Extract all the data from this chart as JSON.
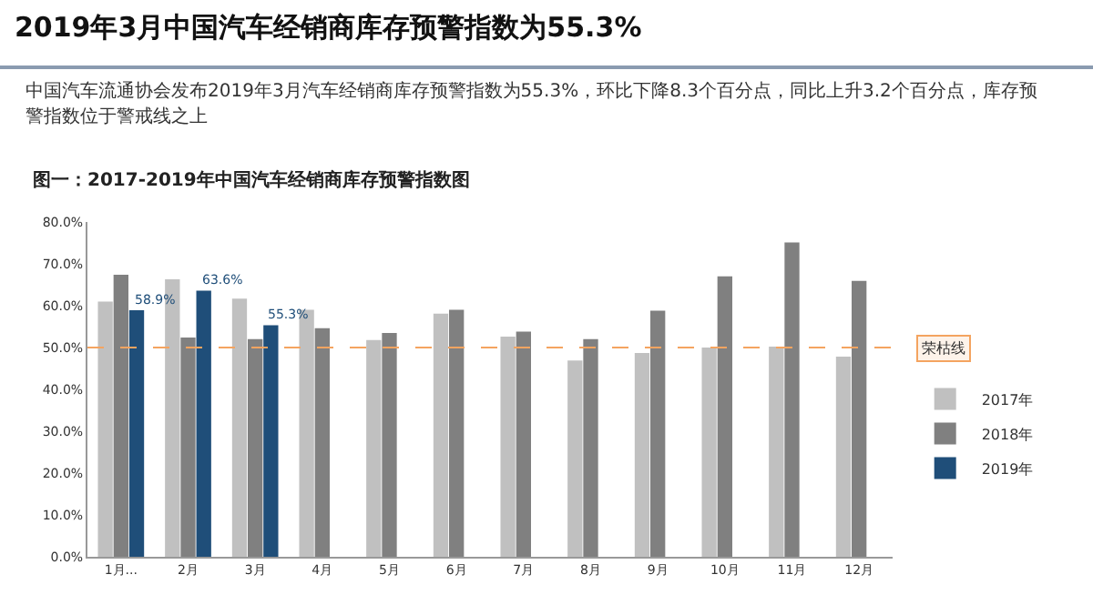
{
  "chart_data": {
    "type": "bar",
    "title": "2019年3月中国汽车经销商库存预警指数为55.3%",
    "subtitle": "中国汽车流通协会发布2019年3月汽车经销商库存预警指数为55.3%，环比下降8.3个百分点，同比上升3.2个百分点，库存预警指数位于警戒线之上",
    "annotations": [
      "图一：2017-2019年中国汽车经销商库存预警指数图"
    ],
    "categories": [
      "1月...",
      "2月",
      "3月",
      "4月",
      "5月",
      "6月",
      "7月",
      "8月",
      "9月",
      "10月",
      "11月",
      "12月"
    ],
    "series": [
      {
        "name": "2017年",
        "color": "#c0c0c0",
        "values": [
          61.0,
          66.3,
          61.7,
          59.0,
          51.8,
          58.1,
          52.6,
          46.9,
          48.7,
          50.0,
          50.2,
          47.8
        ]
      },
      {
        "name": "2018年",
        "color": "#808080",
        "values": [
          67.4,
          52.4,
          52.0,
          54.6,
          53.5,
          59.0,
          53.8,
          52.0,
          58.8,
          67.0,
          75.1,
          65.9
        ]
      },
      {
        "name": "2019年",
        "color": "#1f4e79",
        "values": [
          58.9,
          63.6,
          55.3,
          null,
          null,
          null,
          null,
          null,
          null,
          null,
          null,
          null
        ],
        "value_labels": [
          "58.9%",
          "63.6%",
          "55.3%",
          null,
          null,
          null,
          null,
          null,
          null,
          null,
          null,
          null
        ]
      }
    ],
    "ylim": [
      0,
      80
    ],
    "yticks": [
      {
        "value": 0,
        "label": "0.0%"
      },
      {
        "value": 10,
        "label": "10.0%"
      },
      {
        "value": 20,
        "label": "20.0%"
      },
      {
        "value": 30,
        "label": "30.0%"
      },
      {
        "value": 40,
        "label": "40.0%"
      },
      {
        "value": 50,
        "label": "50.0%"
      },
      {
        "value": 60,
        "label": "60.0%"
      },
      {
        "value": 70,
        "label": "70.0%"
      },
      {
        "value": 80,
        "label": "80.0%"
      }
    ],
    "ref_lines": [
      {
        "axis": "y",
        "value": 50,
        "label": "荣枯线",
        "color": "#f4a460",
        "line_style": "dashed"
      }
    ],
    "grid": false,
    "legend": "right"
  }
}
